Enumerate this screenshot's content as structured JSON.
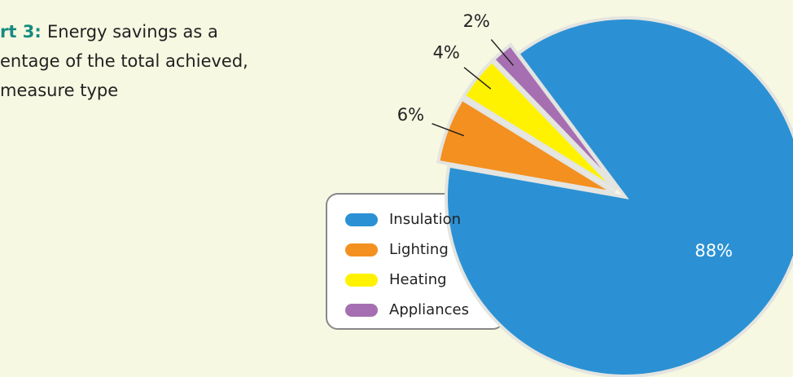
{
  "chart_data": {
    "type": "pie",
    "title_lead": "rt 3:",
    "title_lines": [
      "Energy savings as a",
      "entage of the total achieved,",
      "measure type"
    ],
    "categories": [
      "Insulation",
      "Lighting",
      "Heating",
      "Appliances"
    ],
    "values": [
      88,
      6,
      4,
      2
    ],
    "value_labels": [
      "88%",
      "6%",
      "4%",
      "2%"
    ],
    "colors": [
      "#2b91d4",
      "#f39020",
      "#fff200",
      "#a66fb1"
    ],
    "legend": "left"
  }
}
